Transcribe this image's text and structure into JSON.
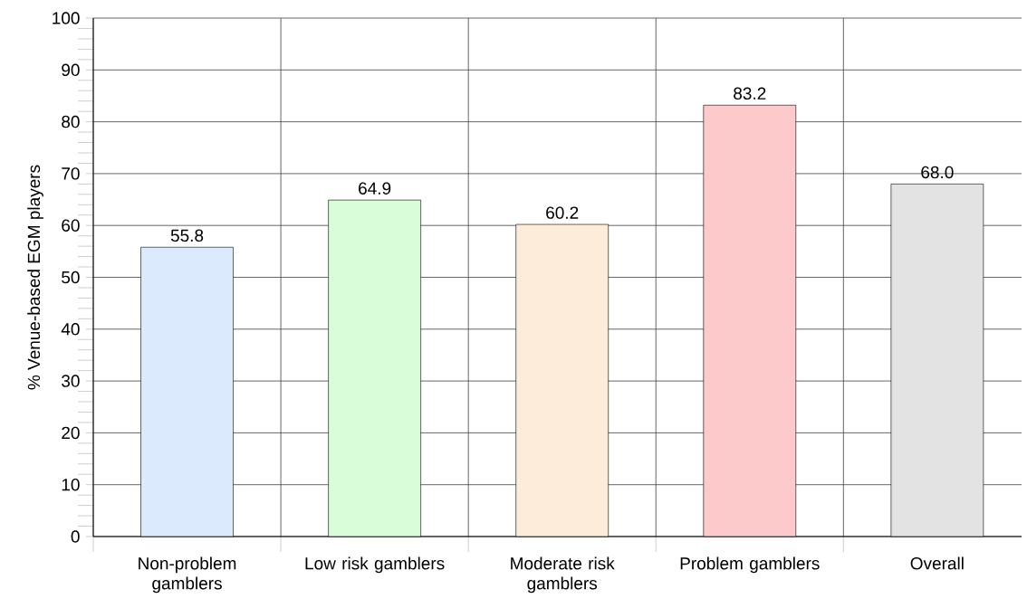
{
  "chart_data": {
    "type": "bar",
    "ylabel": "% Venue-based EGM players",
    "categories": [
      "Non-problem gamblers",
      "Low risk gamblers",
      "Moderate risk gamblers",
      "Problem gamblers",
      "Overall"
    ],
    "values": [
      55.8,
      64.9,
      60.2,
      83.2,
      68.0
    ],
    "value_labels": [
      "55.8",
      "64.9",
      "60.2",
      "83.2",
      "68.0"
    ],
    "colors": [
      "#dbeafc",
      "#d9fcd9",
      "#fdecd9",
      "#fccaca",
      "#e3e3e3"
    ],
    "ylim": [
      0,
      100
    ],
    "yticks": [
      0,
      10,
      20,
      30,
      40,
      50,
      60,
      70,
      80,
      90,
      100
    ],
    "grid": true
  }
}
